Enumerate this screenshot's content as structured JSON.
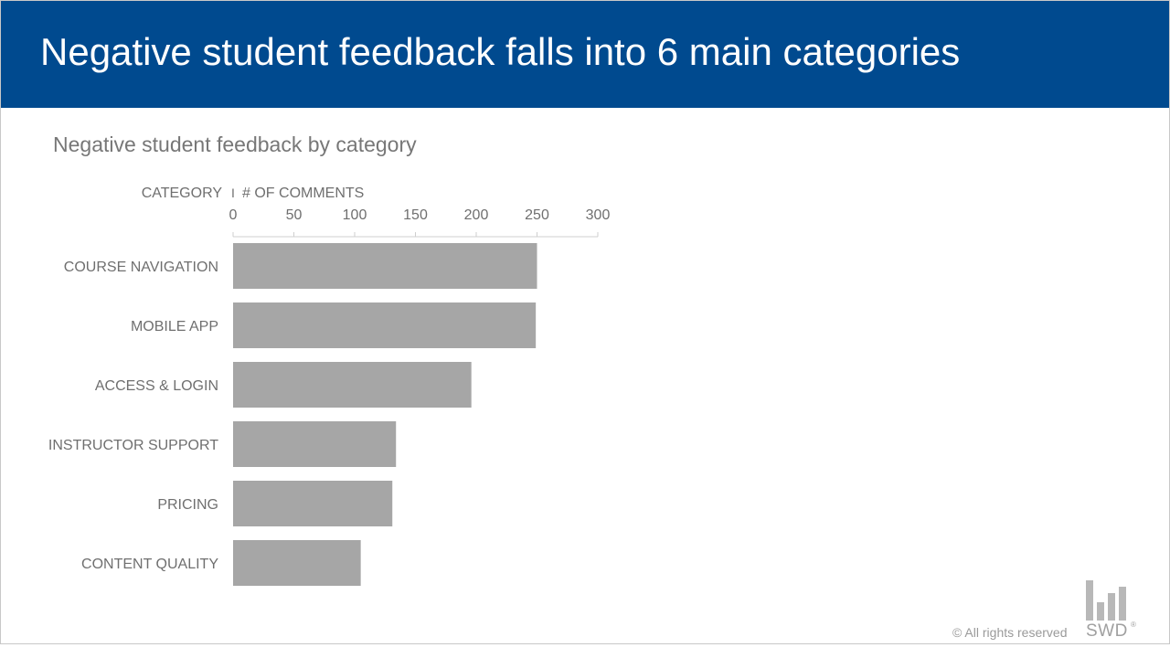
{
  "header": {
    "title": "Negative student feedback falls into 6 main categories",
    "background": "#004a8f"
  },
  "chart_data": {
    "type": "bar",
    "orientation": "horizontal",
    "title": "Negative student feedback by category",
    "axis_header_category": "CATEGORY",
    "axis_header_separator": "I",
    "axis_header_value": "# OF COMMENTS",
    "categories": [
      "COURSE NAVIGATION",
      "MOBILE APP",
      "ACCESS & LOGIN",
      "INSTRUCTOR SUPPORT",
      "PRICING",
      "CONTENT QUALITY"
    ],
    "values": [
      250,
      249,
      196,
      134,
      131,
      105
    ],
    "xlim": [
      0,
      300
    ],
    "ticks": [
      0,
      50,
      100,
      150,
      200,
      250,
      300
    ],
    "axis_position": "top",
    "grid": false,
    "legend": "none",
    "bar_color": "#a6a6a6"
  },
  "footer": {
    "copyright": "© All rights reserved",
    "logo_text": "SWD",
    "logo_mark": "®",
    "logo_icon": "bar-chart-logo-icon"
  }
}
